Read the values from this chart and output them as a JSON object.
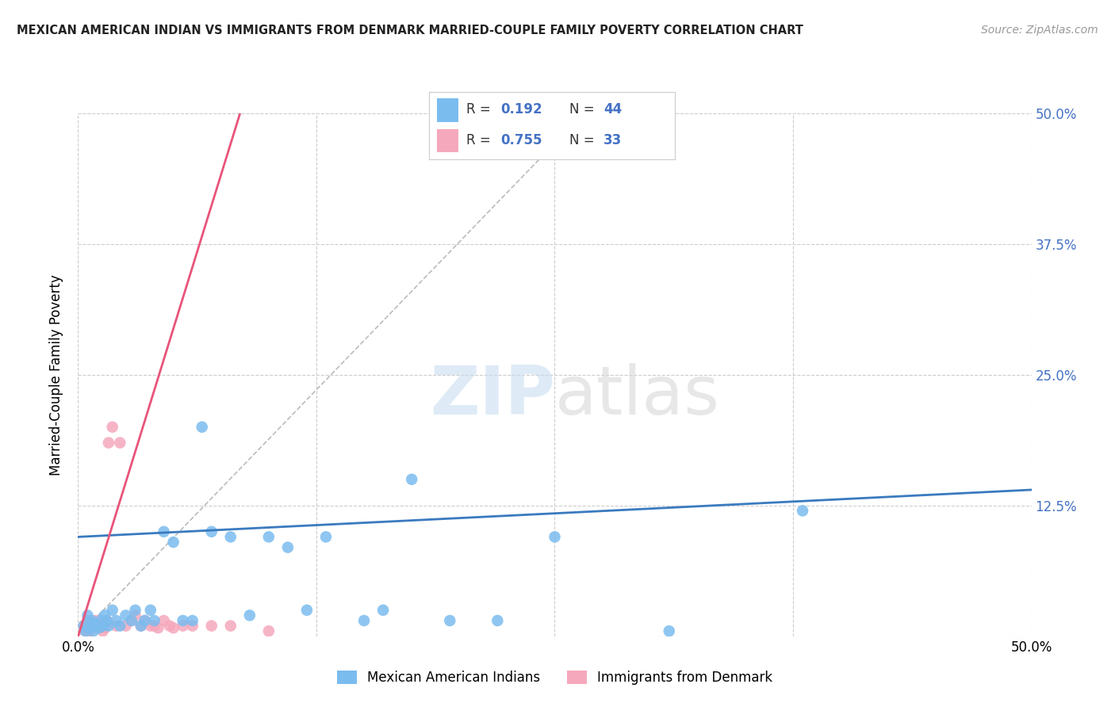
{
  "title": "MEXICAN AMERICAN INDIAN VS IMMIGRANTS FROM DENMARK MARRIED-COUPLE FAMILY POVERTY CORRELATION CHART",
  "source": "Source: ZipAtlas.com",
  "ylabel": "Married-Couple Family Poverty",
  "xmin": 0.0,
  "xmax": 0.5,
  "ymin": 0.0,
  "ymax": 0.5,
  "xticks": [
    0.0,
    0.125,
    0.25,
    0.375,
    0.5
  ],
  "xticklabels": [
    "0.0%",
    "",
    "",
    "",
    "50.0%"
  ],
  "yticks": [
    0.0,
    0.125,
    0.25,
    0.375,
    0.5
  ],
  "yticklabels_right": [
    "",
    "12.5%",
    "25.0%",
    "37.5%",
    "50.0%"
  ],
  "blue_R": 0.192,
  "blue_N": 44,
  "pink_R": 0.755,
  "pink_N": 33,
  "blue_color": "#7bbcef",
  "pink_color": "#f5a8bc",
  "blue_line_color": "#3a7abf",
  "pink_line_color": "#e8547a",
  "legend_label_blue": "Mexican American Indians",
  "legend_label_pink": "Immigrants from Denmark",
  "blue_scatter_x": [
    0.003,
    0.004,
    0.005,
    0.006,
    0.007,
    0.008,
    0.009,
    0.01,
    0.011,
    0.012,
    0.013,
    0.014,
    0.015,
    0.016,
    0.018,
    0.02,
    0.022,
    0.025,
    0.028,
    0.03,
    0.033,
    0.035,
    0.038,
    0.04,
    0.045,
    0.05,
    0.055,
    0.06,
    0.065,
    0.07,
    0.08,
    0.09,
    0.1,
    0.11,
    0.12,
    0.13,
    0.15,
    0.16,
    0.175,
    0.195,
    0.22,
    0.25,
    0.31,
    0.38
  ],
  "blue_scatter_y": [
    0.01,
    0.005,
    0.02,
    0.008,
    0.015,
    0.005,
    0.012,
    0.01,
    0.008,
    0.015,
    0.01,
    0.02,
    0.015,
    0.01,
    0.025,
    0.015,
    0.01,
    0.02,
    0.015,
    0.025,
    0.01,
    0.015,
    0.025,
    0.015,
    0.1,
    0.09,
    0.015,
    0.015,
    0.2,
    0.1,
    0.095,
    0.02,
    0.095,
    0.085,
    0.025,
    0.095,
    0.015,
    0.025,
    0.15,
    0.015,
    0.015,
    0.095,
    0.005,
    0.12
  ],
  "pink_scatter_x": [
    0.003,
    0.004,
    0.005,
    0.006,
    0.007,
    0.008,
    0.009,
    0.01,
    0.011,
    0.012,
    0.013,
    0.014,
    0.015,
    0.016,
    0.018,
    0.02,
    0.022,
    0.025,
    0.028,
    0.03,
    0.033,
    0.035,
    0.038,
    0.04,
    0.042,
    0.045,
    0.048,
    0.05,
    0.055,
    0.06,
    0.07,
    0.08,
    0.1
  ],
  "pink_scatter_y": [
    0.01,
    0.005,
    0.015,
    0.005,
    0.008,
    0.01,
    0.015,
    0.01,
    0.008,
    0.01,
    0.005,
    0.008,
    0.015,
    0.185,
    0.2,
    0.01,
    0.185,
    0.01,
    0.015,
    0.02,
    0.01,
    0.015,
    0.01,
    0.01,
    0.008,
    0.015,
    0.01,
    0.008,
    0.01,
    0.01,
    0.01,
    0.01,
    0.005
  ],
  "blue_line_x": [
    0.0,
    0.5
  ],
  "blue_line_y": [
    0.095,
    0.14
  ],
  "pink_line_x": [
    0.0,
    0.085
  ],
  "pink_line_y": [
    0.0,
    0.5
  ]
}
